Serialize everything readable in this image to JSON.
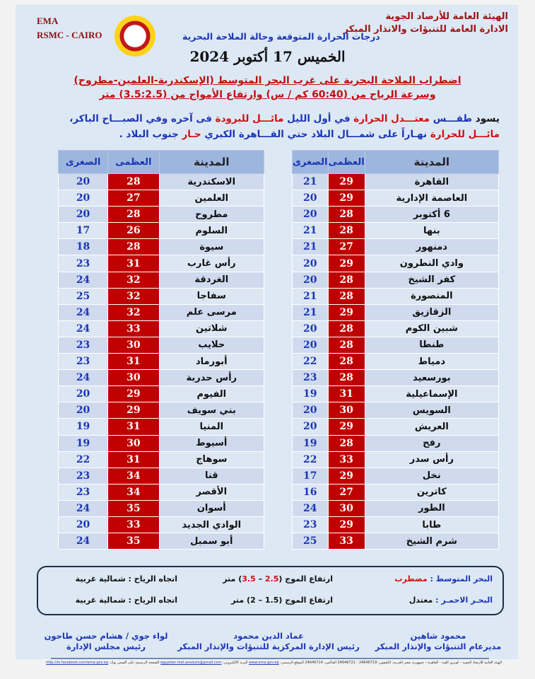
{
  "header": {
    "ema": "EMA",
    "rsmc": "RSMC - CAIRO",
    "org_name": "الهيئة العامة للأرصاد الجوية",
    "org_dept": "الادارة العامة للتنبؤات والانذار المبكر",
    "subtitle": "درجات الحرارة المتوقعة وحالة الملاحة البحرية",
    "date": "الخميس 17 أكتوبر 2024"
  },
  "warning": {
    "line1": "اضطراب الملاحة البحرية على غرب البحر المتوسط (الإسكندرية-العلمين-مطروح)",
    "line2": "وسرعة الرياح من (60:40 كم / س) وارتفاع الأمواج من (3.5:2.5) متر"
  },
  "description": {
    "l1": [
      [
        "يسود ",
        "k"
      ],
      [
        "طقـــس ",
        "b"
      ],
      [
        "معتـــدل الحرارة ",
        "r"
      ],
      [
        "في أول الليل ",
        "b"
      ],
      [
        "مائـــل ",
        "r"
      ],
      [
        "للبرودة ",
        "r"
      ],
      [
        "فى آخره وفي الصبـــاح الباكر،",
        "b"
      ]
    ],
    "l2": [
      [
        "مائـــل ",
        "r"
      ],
      [
        "للحرارة ",
        "r"
      ],
      [
        "نهـاراً على شمـــال البلاد حتي القـــاهرة الكبري ",
        "b"
      ],
      [
        "حـار ",
        "r"
      ],
      [
        "جنوب البلاد .",
        "b"
      ]
    ]
  },
  "table_headers": {
    "city": "المدينة",
    "max": "العظمى",
    "min": "الصغرى"
  },
  "table_right": [
    [
      "القاهرة",
      "29",
      "21"
    ],
    [
      "العاصمة الإدارية",
      "29",
      "20"
    ],
    [
      "6 أكتوبر",
      "28",
      "20"
    ],
    [
      "بنها",
      "28",
      "21"
    ],
    [
      "دمنهور",
      "27",
      "21"
    ],
    [
      "وادي النطرون",
      "29",
      "20"
    ],
    [
      "كفر الشيخ",
      "28",
      "20"
    ],
    [
      "المنصورة",
      "28",
      "21"
    ],
    [
      "الزقازيق",
      "29",
      "21"
    ],
    [
      "شبين الكوم",
      "28",
      "20"
    ],
    [
      "طنطا",
      "28",
      "20"
    ],
    [
      "دمياط",
      "28",
      "22"
    ],
    [
      "بورسعيد",
      "28",
      "23"
    ],
    [
      "الإسماعيلية",
      "31",
      "19"
    ],
    [
      "السويس",
      "30",
      "20"
    ],
    [
      "العريش",
      "29",
      "20"
    ],
    [
      "رفح",
      "28",
      "19"
    ],
    [
      "رأس سدر",
      "33",
      "22"
    ],
    [
      "نخل",
      "29",
      "17"
    ],
    [
      "كاترين",
      "27",
      "16"
    ],
    [
      "الطور",
      "30",
      "24"
    ],
    [
      "طابا",
      "29",
      "23"
    ],
    [
      "شرم الشيخ",
      "33",
      "25"
    ]
  ],
  "table_left": [
    [
      "الاسكندرية",
      "28",
      "20"
    ],
    [
      "العلمين",
      "27",
      "20"
    ],
    [
      "مطروح",
      "28",
      "20"
    ],
    [
      "السلوم",
      "26",
      "17"
    ],
    [
      "سيوة",
      "28",
      "18"
    ],
    [
      "رأس غارب",
      "31",
      "23"
    ],
    [
      "الغردقة",
      "32",
      "24"
    ],
    [
      "سفاجا",
      "32",
      "25"
    ],
    [
      "مرسى علم",
      "32",
      "24"
    ],
    [
      "شلاتين",
      "33",
      "24"
    ],
    [
      "حلايب",
      "30",
      "23"
    ],
    [
      "أبورماد",
      "31",
      "23"
    ],
    [
      "رأس حدربة",
      "30",
      "24"
    ],
    [
      "الفيوم",
      "29",
      "20"
    ],
    [
      "بني سويف",
      "29",
      "20"
    ],
    [
      "المنيا",
      "31",
      "19"
    ],
    [
      "أسيوط",
      "30",
      "19"
    ],
    [
      "سوهاج",
      "31",
      "22"
    ],
    [
      "قنا",
      "34",
      "23"
    ],
    [
      "الأقصر",
      "34",
      "23"
    ],
    [
      "أسوان",
      "35",
      "24"
    ],
    [
      "الوادي الجديد",
      "33",
      "20"
    ],
    [
      "أبو سمبل",
      "35",
      "24"
    ]
  ],
  "sea": {
    "med_label": "البحر المتوسط : ",
    "med_state": "مضطرب",
    "med_wave_pre": "ارتفاع الموج (",
    "med_wave_a": "2.5",
    "med_wave_sep": " – ",
    "med_wave_b": "3.5",
    "med_wave_post": ") متر",
    "med_wind": "اتجاه الرياح : شمالية غربية",
    "red_label": "البحـر الاحمـر : ",
    "red_state": "معتدل",
    "red_wave": "ارتفاع الموج (1.5 – 2) متر",
    "red_wind": "اتجاه الرياح : شمالية غربية"
  },
  "signatures": [
    {
      "name": "محمود شاهين",
      "title": "مديرعام التنبؤات والإنذار المبكر"
    },
    {
      "name": "عماد الدين محمود",
      "title": "رئيس الإدارة المركزية للتنبؤات والإنذار المبكر"
    },
    {
      "name": "لواء جوي / هشام حسن طاحون",
      "title": "رئيس مجلس الإدارة"
    }
  ],
  "footer": {
    "text": "الهيئة العامة للأرصاد الجوية - كوبري القبة - القاهرة - جمهورية مصر العربية، التليفون: 24646719 - 24646721 الفاكس: 24646714 الموقع الرسمي: ",
    "site": "www.ema.gov.eg",
    "email_label": " البريد الالكتروني: ",
    "email": "egyptian.met.analysis@gmail.com",
    "fb_label": " الصفحة الرسمية على الفيس بوك: ",
    "fb": "http://m.facebook.com/ema.gov.eg"
  }
}
